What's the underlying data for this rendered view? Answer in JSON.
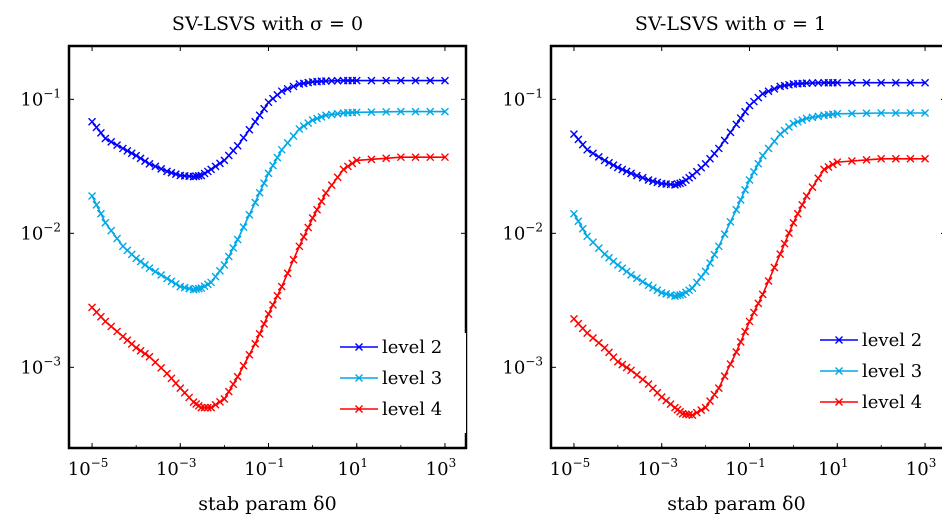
{
  "chart_data": [
    {
      "type": "line",
      "title": "SV-LSVS with σ = 0",
      "xlabel": "stab param δ0",
      "ylabel": "",
      "xscale": "log",
      "yscale": "log",
      "xlim": [
        3e-06,
        3000
      ],
      "ylim": [
        0.00025,
        0.25
      ],
      "x_ticks": [
        "10^-5",
        "10^-3",
        "10^-1",
        "10^1",
        "10^3"
      ],
      "y_ticks": [
        "10^-3",
        "10^-2",
        "10^-1"
      ],
      "grid": false,
      "legend_position": "bottom-right",
      "series": [
        {
          "name": "level 2",
          "color": "#0000ff",
          "x": [
            1e-05,
            2e-05,
            5e-05,
            0.0001,
            0.0002,
            0.0005,
            0.001,
            0.002,
            0.003,
            0.005,
            0.01,
            0.02,
            0.05,
            0.1,
            0.2,
            0.5,
            1,
            2,
            5,
            10,
            100,
            1000
          ],
          "y": [
            0.068,
            0.051,
            0.043,
            0.038,
            0.033,
            0.029,
            0.027,
            0.0265,
            0.027,
            0.03,
            0.035,
            0.045,
            0.068,
            0.095,
            0.115,
            0.13,
            0.135,
            0.137,
            0.138,
            0.138,
            0.138,
            0.138
          ]
        },
        {
          "name": "level 3",
          "color": "#00a8e8",
          "x": [
            1e-05,
            2e-05,
            5e-05,
            0.0001,
            0.0002,
            0.0005,
            0.001,
            0.002,
            0.003,
            0.005,
            0.01,
            0.02,
            0.05,
            0.1,
            0.2,
            0.5,
            1,
            2,
            5,
            10,
            100,
            1000
          ],
          "y": [
            0.019,
            0.012,
            0.008,
            0.0065,
            0.0055,
            0.0046,
            0.004,
            0.0038,
            0.0039,
            0.0043,
            0.0058,
            0.009,
            0.017,
            0.028,
            0.042,
            0.06,
            0.07,
            0.076,
            0.079,
            0.08,
            0.081,
            0.081
          ]
        },
        {
          "name": "level 4",
          "color": "#ff0000",
          "x": [
            1e-05,
            2e-05,
            5e-05,
            0.0001,
            0.0002,
            0.0005,
            0.001,
            0.002,
            0.003,
            0.005,
            0.01,
            0.02,
            0.05,
            0.1,
            0.2,
            0.5,
            1,
            2,
            5,
            10,
            100,
            1000
          ],
          "y": [
            0.0028,
            0.0022,
            0.0017,
            0.0014,
            0.0012,
            0.0009,
            0.0007,
            0.00055,
            0.0005,
            0.0005,
            0.00058,
            0.00085,
            0.0015,
            0.0025,
            0.004,
            0.008,
            0.013,
            0.02,
            0.03,
            0.035,
            0.037,
            0.037
          ]
        }
      ]
    },
    {
      "type": "line",
      "title": "SV-LSVS with σ = 1",
      "xlabel": "stab param δ0",
      "ylabel": "",
      "xscale": "log",
      "yscale": "log",
      "xlim": [
        3e-06,
        3000
      ],
      "ylim": [
        0.00025,
        0.25
      ],
      "x_ticks": [
        "10^-5",
        "10^-3",
        "10^-1",
        "10^1",
        "10^3"
      ],
      "y_ticks": [
        "10^-3",
        "10^-2",
        "10^-1"
      ],
      "grid": false,
      "legend_position": "bottom-right",
      "series": [
        {
          "name": "level 2",
          "color": "#0000ff",
          "x": [
            1e-05,
            2e-05,
            5e-05,
            0.0001,
            0.0002,
            0.0005,
            0.001,
            0.002,
            0.003,
            0.005,
            0.01,
            0.02,
            0.05,
            0.1,
            0.2,
            0.5,
            1,
            2,
            5,
            10,
            100,
            1000
          ],
          "y": [
            0.055,
            0.042,
            0.035,
            0.031,
            0.028,
            0.025,
            0.0235,
            0.023,
            0.024,
            0.027,
            0.033,
            0.043,
            0.065,
            0.09,
            0.11,
            0.125,
            0.13,
            0.132,
            0.133,
            0.133,
            0.133,
            0.133
          ]
        },
        {
          "name": "level 3",
          "color": "#00a8e8",
          "x": [
            1e-05,
            2e-05,
            5e-05,
            0.0001,
            0.0002,
            0.0005,
            0.001,
            0.002,
            0.003,
            0.005,
            0.01,
            0.02,
            0.05,
            0.1,
            0.2,
            0.5,
            1,
            2,
            5,
            10,
            100,
            1000
          ],
          "y": [
            0.014,
            0.0095,
            0.007,
            0.0058,
            0.0049,
            0.0041,
            0.0036,
            0.0034,
            0.0035,
            0.0039,
            0.0052,
            0.008,
            0.015,
            0.025,
            0.038,
            0.055,
            0.066,
            0.072,
            0.076,
            0.078,
            0.079,
            0.079
          ]
        },
        {
          "name": "level 4",
          "color": "#ff0000",
          "x": [
            1e-05,
            2e-05,
            5e-05,
            0.0001,
            0.0002,
            0.0005,
            0.001,
            0.002,
            0.003,
            0.005,
            0.01,
            0.02,
            0.05,
            0.1,
            0.2,
            0.5,
            1,
            2,
            5,
            10,
            100,
            1000
          ],
          "y": [
            0.0023,
            0.0018,
            0.0014,
            0.0011,
            0.00095,
            0.00075,
            0.0006,
            0.0005,
            0.00045,
            0.00044,
            0.0005,
            0.0007,
            0.0013,
            0.0022,
            0.0035,
            0.007,
            0.012,
            0.019,
            0.03,
            0.034,
            0.036,
            0.036
          ]
        }
      ]
    }
  ]
}
